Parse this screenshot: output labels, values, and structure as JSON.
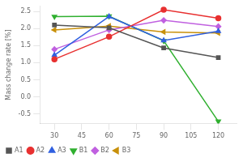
{
  "chart_data": {
    "type": "line",
    "x": [
      30,
      60,
      90,
      120
    ],
    "series": [
      {
        "name": "A1",
        "color": "#555555",
        "marker": "square",
        "values": [
          2.1,
          2.02,
          1.43,
          1.15
        ]
      },
      {
        "name": "A2",
        "color": "#e83030",
        "marker": "circle",
        "values": [
          1.1,
          1.76,
          2.55,
          2.3
        ]
      },
      {
        "name": "A3",
        "color": "#3060e0",
        "marker": "triangle-up",
        "values": [
          1.22,
          2.35,
          1.65,
          1.92
        ]
      },
      {
        "name": "B1",
        "color": "#30b030",
        "marker": "triangle-down",
        "values": [
          2.35,
          2.36,
          1.64,
          -0.72
        ]
      },
      {
        "name": "B2",
        "color": "#c060e0",
        "marker": "diamond",
        "values": [
          1.39,
          1.96,
          2.24,
          2.06
        ]
      },
      {
        "name": "B3",
        "color": "#c8900a",
        "marker": "triangle-left",
        "values": [
          1.96,
          2.07,
          1.9,
          1.87
        ]
      }
    ],
    "ylabel": "Mass change rate [%]",
    "xlim": [
      22,
      130
    ],
    "ylim": [
      -0.78,
      2.65
    ],
    "xticks": [
      30,
      45,
      60,
      75,
      90,
      105,
      120
    ],
    "yticks": [
      -0.5,
      {
        "value": 0.0,
        "label": "0.0"
      },
      0.5,
      {
        "value": 1.0,
        "label": "1.0"
      },
      1.5,
      {
        "value": 2.0,
        "label": "2.0"
      },
      2.5
    ],
    "grid": false,
    "legend": "lower left"
  }
}
